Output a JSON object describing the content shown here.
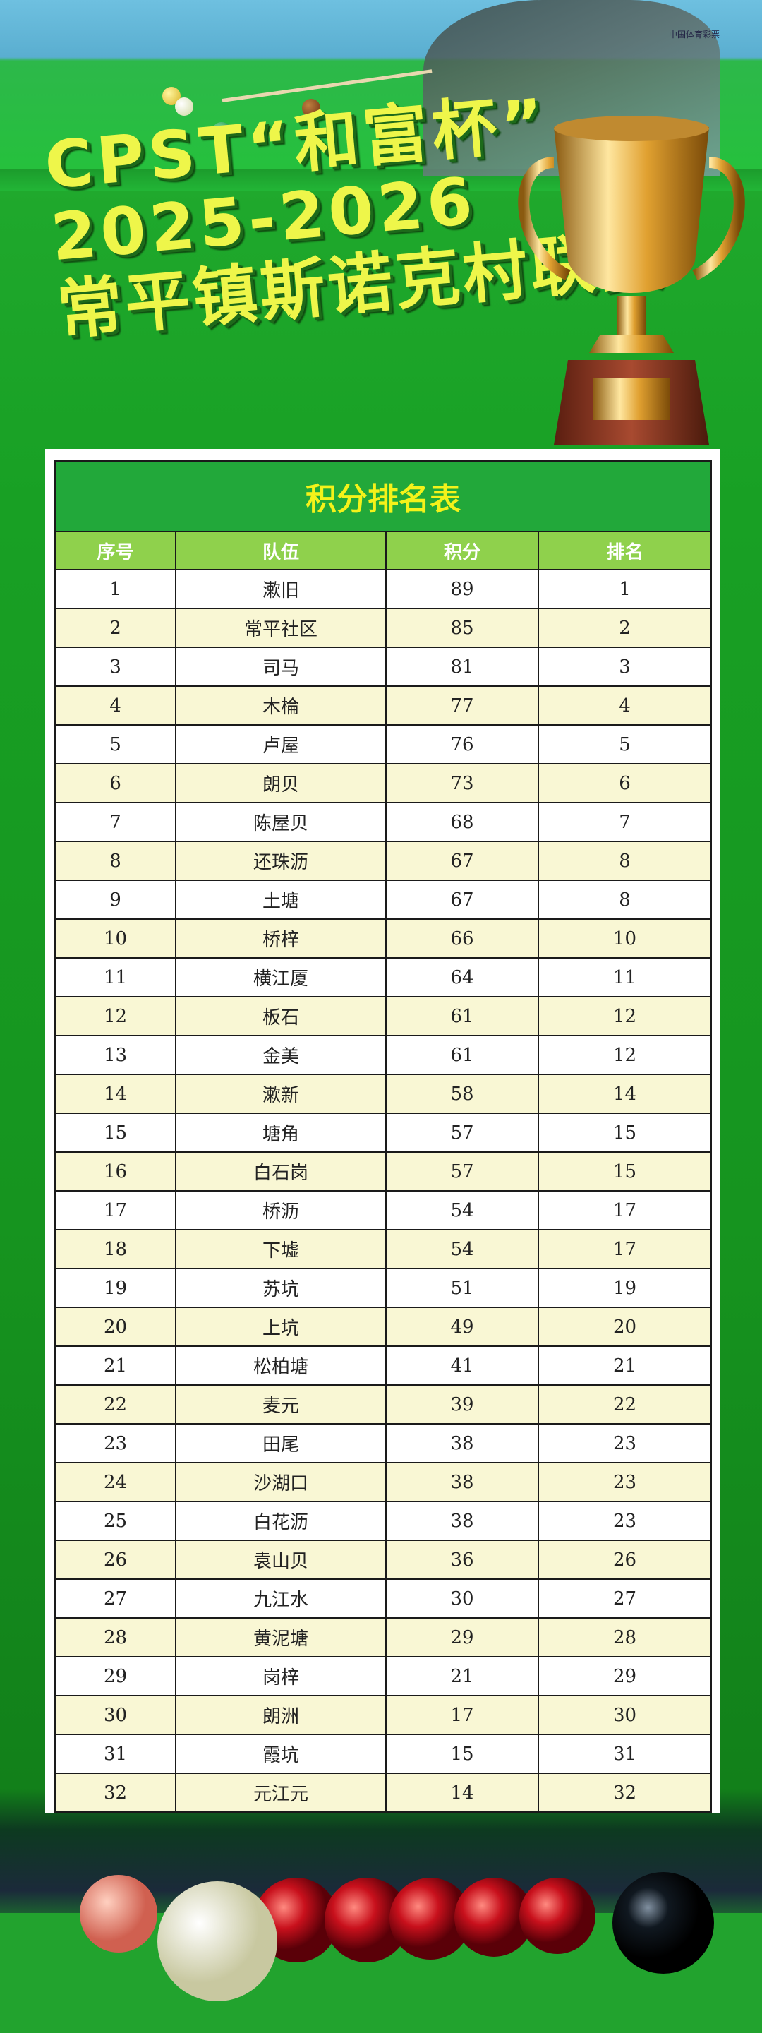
{
  "poster": {
    "title_line1": "CPST“和富杯”",
    "title_line2": "2025-2026",
    "title_line3": "常平镇斯诺克村联赛",
    "sponsor_logo_text": "中国体育彩票"
  },
  "colors": {
    "title_text": "#eef64a",
    "table_title_bg": "#22a83a",
    "header_bg": "#8fd14c",
    "stripe": "#f9f7d4"
  },
  "table": {
    "title": "积分排名表",
    "headers": [
      "序号",
      "队伍",
      "积分",
      "排名"
    ],
    "rows": [
      [
        "1",
        "漱旧",
        "89",
        "1"
      ],
      [
        "2",
        "常平社区",
        "85",
        "2"
      ],
      [
        "3",
        "司马",
        "81",
        "3"
      ],
      [
        "4",
        "木棆",
        "77",
        "4"
      ],
      [
        "5",
        "卢屋",
        "76",
        "5"
      ],
      [
        "6",
        "朗贝",
        "73",
        "6"
      ],
      [
        "7",
        "陈屋贝",
        "68",
        "7"
      ],
      [
        "8",
        "还珠沥",
        "67",
        "8"
      ],
      [
        "9",
        "土塘",
        "67",
        "8"
      ],
      [
        "10",
        "桥梓",
        "66",
        "10"
      ],
      [
        "11",
        "横江厦",
        "64",
        "11"
      ],
      [
        "12",
        "板石",
        "61",
        "12"
      ],
      [
        "13",
        "金美",
        "61",
        "12"
      ],
      [
        "14",
        "漱新",
        "58",
        "14"
      ],
      [
        "15",
        "塘角",
        "57",
        "15"
      ],
      [
        "16",
        "白石岗",
        "57",
        "15"
      ],
      [
        "17",
        "桥沥",
        "54",
        "17"
      ],
      [
        "18",
        "下墟",
        "54",
        "17"
      ],
      [
        "19",
        "苏坑",
        "51",
        "19"
      ],
      [
        "20",
        "上坑",
        "49",
        "20"
      ],
      [
        "21",
        "松柏塘",
        "41",
        "21"
      ],
      [
        "22",
        "麦元",
        "39",
        "22"
      ],
      [
        "23",
        "田尾",
        "38",
        "23"
      ],
      [
        "24",
        "沙湖口",
        "38",
        "23"
      ],
      [
        "25",
        "白花沥",
        "38",
        "23"
      ],
      [
        "26",
        "袁山贝",
        "36",
        "26"
      ],
      [
        "27",
        "九江水",
        "30",
        "27"
      ],
      [
        "28",
        "黄泥塘",
        "29",
        "28"
      ],
      [
        "29",
        "岗梓",
        "21",
        "29"
      ],
      [
        "30",
        "朗洲",
        "17",
        "30"
      ],
      [
        "31",
        "霞坑",
        "15",
        "31"
      ],
      [
        "32",
        "元江元",
        "14",
        "32"
      ]
    ]
  }
}
